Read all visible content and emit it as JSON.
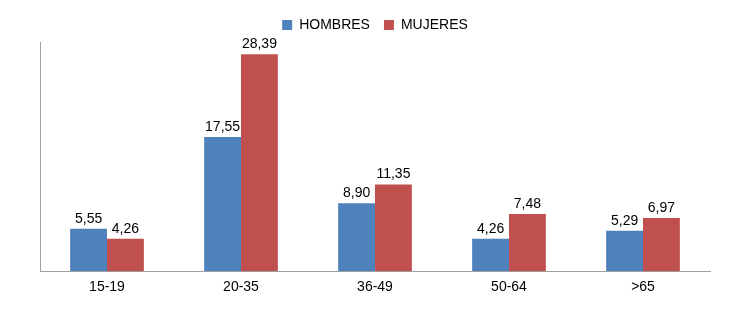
{
  "chart_data": {
    "type": "bar",
    "categories": [
      "15-19",
      "20-35",
      "36-49",
      "50-64",
      ">65"
    ],
    "series": [
      {
        "name": "HOMBRES",
        "color": "#4f81bd",
        "values": [
          5.55,
          17.55,
          8.9,
          4.26,
          5.29
        ],
        "value_labels": [
          "5,55",
          "17,55",
          "8,90",
          "4,26",
          "5,29"
        ]
      },
      {
        "name": "MUJERES",
        "color": "#c0504d",
        "values": [
          4.26,
          28.39,
          11.35,
          7.48,
          6.97
        ],
        "value_labels": [
          "4,26",
          "28,39",
          "11,35",
          "7,48",
          "6,97"
        ]
      }
    ],
    "ylim": [
      0,
      30
    ],
    "grid": false,
    "legend": "top",
    "data_labels": true,
    "tick_labels": "x"
  }
}
